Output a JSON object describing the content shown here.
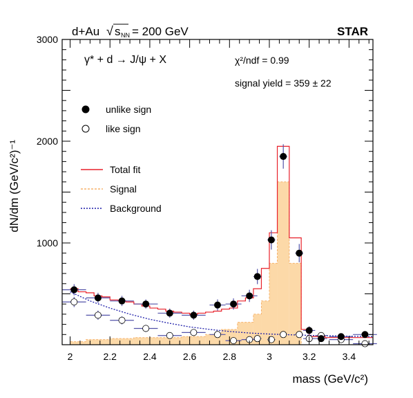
{
  "chart_data": {
    "type": "scatter",
    "collaboration": "STAR",
    "header": {
      "system": "d+Au",
      "sqrt": "√",
      "s_symbol": "s",
      "s_sub": "NN",
      "energy": "= 200 GeV"
    },
    "reaction": "γ* + d → J/ψ + X",
    "chi2_label": "χ²/ndf = 0.99",
    "signal_yield": "signal yield = 359 ± 22",
    "xlabel": "mass (GeV/c²)",
    "ylabel": "dN/dm (GeV/c²)⁻¹",
    "xlim": [
      1.96,
      3.52
    ],
    "ylim": [
      0,
      3000
    ],
    "xticks": [
      {
        "v": 2.0,
        "label": "2"
      },
      {
        "v": 2.2,
        "label": "2.2"
      },
      {
        "v": 2.4,
        "label": "2.4"
      },
      {
        "v": 2.6,
        "label": "2.6"
      },
      {
        "v": 2.8,
        "label": "2.8"
      },
      {
        "v": 3.0,
        "label": "3"
      },
      {
        "v": 3.2,
        "label": "3.2"
      },
      {
        "v": 3.4,
        "label": "3.4"
      }
    ],
    "yticks": [
      {
        "v": 1000,
        "label": "1000"
      },
      {
        "v": 2000,
        "label": "2000"
      },
      {
        "v": 3000,
        "label": "3000"
      }
    ],
    "legend_markers": [
      {
        "name": "unlike sign",
        "marker": "filled-circle"
      },
      {
        "name": "like sign",
        "marker": "open-circle"
      }
    ],
    "legend_lines": [
      {
        "name": "Total fit",
        "style": "solid",
        "color": "#e8202a"
      },
      {
        "name": "Signal",
        "style": "dashed",
        "color": "#f6b26b"
      },
      {
        "name": "Background",
        "style": "dotted",
        "color": "#1a1aa8"
      }
    ],
    "colors": {
      "unlike": "#000000",
      "like": "#ffffff",
      "error_bar": "#5252a8",
      "total_fit": "#e8202a",
      "signal_fill": "#fcd9a8",
      "signal_line": "#f6b26b",
      "background": "#1a1aa8"
    },
    "series": [
      {
        "name": "unlike sign",
        "points": [
          {
            "x": 2.02,
            "xerr": 0.06,
            "y": 540,
            "yerr": 55
          },
          {
            "x": 2.14,
            "xerr": 0.06,
            "y": 460,
            "yerr": 50
          },
          {
            "x": 2.26,
            "xerr": 0.06,
            "y": 430,
            "yerr": 50
          },
          {
            "x": 2.38,
            "xerr": 0.06,
            "y": 400,
            "yerr": 45
          },
          {
            "x": 2.5,
            "xerr": 0.06,
            "y": 310,
            "yerr": 45
          },
          {
            "x": 2.62,
            "xerr": 0.06,
            "y": 290,
            "yerr": 45
          },
          {
            "x": 2.74,
            "xerr": 0.04,
            "y": 390,
            "yerr": 55
          },
          {
            "x": 2.82,
            "xerr": 0.04,
            "y": 400,
            "yerr": 55
          },
          {
            "x": 2.9,
            "xerr": 0.04,
            "y": 480,
            "yerr": 60
          },
          {
            "x": 2.94,
            "xerr": 0.02,
            "y": 670,
            "yerr": 75
          },
          {
            "x": 3.01,
            "xerr": 0.02,
            "y": 1030,
            "yerr": 95
          },
          {
            "x": 3.07,
            "xerr": 0.02,
            "y": 1850,
            "yerr": 120
          },
          {
            "x": 3.15,
            "xerr": 0.02,
            "y": 900,
            "yerr": 90
          },
          {
            "x": 3.2,
            "xerr": 0.03,
            "y": 140,
            "yerr": 40
          },
          {
            "x": 3.26,
            "xerr": 0.03,
            "y": 60,
            "yerr": 30
          },
          {
            "x": 3.36,
            "xerr": 0.06,
            "y": 80,
            "yerr": 30
          },
          {
            "x": 3.48,
            "xerr": 0.06,
            "y": 100,
            "yerr": 30
          }
        ]
      },
      {
        "name": "like sign",
        "points": [
          {
            "x": 2.02,
            "xerr": 0.06,
            "y": 420,
            "yerr": 50
          },
          {
            "x": 2.14,
            "xerr": 0.06,
            "y": 290,
            "yerr": 45
          },
          {
            "x": 2.26,
            "xerr": 0.06,
            "y": 240,
            "yerr": 40
          },
          {
            "x": 2.38,
            "xerr": 0.06,
            "y": 160,
            "yerr": 35
          },
          {
            "x": 2.5,
            "xerr": 0.06,
            "y": 90,
            "yerr": 30
          },
          {
            "x": 2.62,
            "xerr": 0.06,
            "y": 120,
            "yerr": 30
          },
          {
            "x": 2.74,
            "xerr": 0.04,
            "y": 100,
            "yerr": 30
          },
          {
            "x": 2.82,
            "xerr": 0.04,
            "y": 40,
            "yerr": 25
          },
          {
            "x": 2.9,
            "xerr": 0.04,
            "y": 50,
            "yerr": 25
          },
          {
            "x": 2.94,
            "xerr": 0.02,
            "y": 60,
            "yerr": 25
          },
          {
            "x": 3.01,
            "xerr": 0.02,
            "y": 50,
            "yerr": 25
          },
          {
            "x": 3.07,
            "xerr": 0.02,
            "y": 100,
            "yerr": 30
          },
          {
            "x": 3.15,
            "xerr": 0.02,
            "y": 100,
            "yerr": 30
          },
          {
            "x": 3.2,
            "xerr": 0.03,
            "y": 60,
            "yerr": 25
          },
          {
            "x": 3.26,
            "xerr": 0.03,
            "y": 90,
            "yerr": 30
          },
          {
            "x": 3.36,
            "xerr": 0.06,
            "y": 50,
            "yerr": 25
          },
          {
            "x": 3.48,
            "xerr": 0.06,
            "y": 10,
            "yerr": 20
          }
        ]
      }
    ],
    "signal_histogram": [
      {
        "x0": 2.0,
        "x1": 2.08,
        "y": 30
      },
      {
        "x0": 2.08,
        "x1": 2.2,
        "y": 50
      },
      {
        "x0": 2.2,
        "x1": 2.32,
        "y": 60
      },
      {
        "x0": 2.32,
        "x1": 2.44,
        "y": 70
      },
      {
        "x0": 2.44,
        "x1": 2.56,
        "y": 70
      },
      {
        "x0": 2.56,
        "x1": 2.68,
        "y": 80
      },
      {
        "x0": 2.68,
        "x1": 2.76,
        "y": 100
      },
      {
        "x0": 2.76,
        "x1": 2.84,
        "y": 150
      },
      {
        "x0": 2.84,
        "x1": 2.92,
        "y": 220
      },
      {
        "x0": 2.92,
        "x1": 2.96,
        "y": 300
      },
      {
        "x0": 2.96,
        "x1": 3.0,
        "y": 430
      },
      {
        "x0": 3.0,
        "x1": 3.04,
        "y": 800
      },
      {
        "x0": 3.04,
        "x1": 3.1,
        "y": 1600
      },
      {
        "x0": 3.1,
        "x1": 3.16,
        "y": 800
      },
      {
        "x0": 3.16,
        "x1": 3.52,
        "y": 0
      }
    ],
    "total_fit_histogram": [
      {
        "x0": 2.0,
        "x1": 2.04,
        "y": 550
      },
      {
        "x0": 2.04,
        "x1": 2.08,
        "y": 520
      },
      {
        "x0": 2.08,
        "x1": 2.12,
        "y": 510
      },
      {
        "x0": 2.12,
        "x1": 2.16,
        "y": 480
      },
      {
        "x0": 2.16,
        "x1": 2.2,
        "y": 470
      },
      {
        "x0": 2.2,
        "x1": 2.24,
        "y": 440
      },
      {
        "x0": 2.24,
        "x1": 2.28,
        "y": 430
      },
      {
        "x0": 2.28,
        "x1": 2.32,
        "y": 420
      },
      {
        "x0": 2.32,
        "x1": 2.36,
        "y": 400
      },
      {
        "x0": 2.36,
        "x1": 2.4,
        "y": 380
      },
      {
        "x0": 2.4,
        "x1": 2.44,
        "y": 360
      },
      {
        "x0": 2.44,
        "x1": 2.48,
        "y": 350
      },
      {
        "x0": 2.48,
        "x1": 2.52,
        "y": 330
      },
      {
        "x0": 2.52,
        "x1": 2.56,
        "y": 320
      },
      {
        "x0": 2.56,
        "x1": 2.6,
        "y": 310
      },
      {
        "x0": 2.6,
        "x1": 2.64,
        "y": 300
      },
      {
        "x0": 2.64,
        "x1": 2.68,
        "y": 310
      },
      {
        "x0": 2.68,
        "x1": 2.72,
        "y": 320
      },
      {
        "x0": 2.72,
        "x1": 2.76,
        "y": 330
      },
      {
        "x0": 2.76,
        "x1": 2.8,
        "y": 350
      },
      {
        "x0": 2.8,
        "x1": 2.84,
        "y": 360
      },
      {
        "x0": 2.84,
        "x1": 2.88,
        "y": 430
      },
      {
        "x0": 2.88,
        "x1": 2.92,
        "y": 460
      },
      {
        "x0": 2.92,
        "x1": 2.96,
        "y": 550
      },
      {
        "x0": 2.96,
        "x1": 3.0,
        "y": 750
      },
      {
        "x0": 3.0,
        "x1": 3.04,
        "y": 1100
      },
      {
        "x0": 3.04,
        "x1": 3.1,
        "y": 1950
      },
      {
        "x0": 3.1,
        "x1": 3.16,
        "y": 1050
      },
      {
        "x0": 3.16,
        "x1": 3.2,
        "y": 150
      },
      {
        "x0": 3.2,
        "x1": 3.28,
        "y": 80
      },
      {
        "x0": 3.28,
        "x1": 3.52,
        "y": 70
      }
    ],
    "background_curve": [
      {
        "x": 2.0,
        "y": 520
      },
      {
        "x": 2.1,
        "y": 430
      },
      {
        "x": 2.2,
        "y": 360
      },
      {
        "x": 2.3,
        "y": 300
      },
      {
        "x": 2.4,
        "y": 250
      },
      {
        "x": 2.5,
        "y": 210
      },
      {
        "x": 2.6,
        "y": 175
      },
      {
        "x": 2.7,
        "y": 150
      },
      {
        "x": 2.8,
        "y": 130
      },
      {
        "x": 2.9,
        "y": 115
      },
      {
        "x": 3.0,
        "y": 105
      },
      {
        "x": 3.1,
        "y": 98
      },
      {
        "x": 3.2,
        "y": 92
      },
      {
        "x": 3.3,
        "y": 88
      },
      {
        "x": 3.4,
        "y": 84
      },
      {
        "x": 3.52,
        "y": 80
      }
    ]
  }
}
